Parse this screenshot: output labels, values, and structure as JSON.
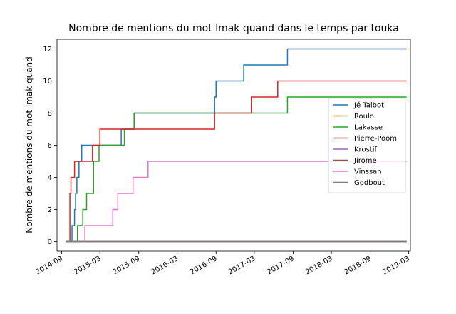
{
  "chart_data": {
    "type": "line",
    "step": "post",
    "title": "Nombre de mentions du mot lmak quand dans le temps par touka",
    "xlabel": "",
    "ylabel": "Nombre de mentions du mot lmak quand",
    "xlim": [
      "2014-08-10",
      "2019-03-10"
    ],
    "ylim": [
      -0.6,
      12.6
    ],
    "x_ticks": [
      "2014-09",
      "2015-03",
      "2015-09",
      "2016-03",
      "2016-09",
      "2017-03",
      "2017-09",
      "2018-03",
      "2018-09",
      "2019-03"
    ],
    "y_ticks": [
      0,
      2,
      4,
      6,
      8,
      10,
      12
    ],
    "grid": false,
    "legend_position": "center-right",
    "series": [
      {
        "name": "Jé Talbot",
        "color": "#1f77b4",
        "x": [
          "2014-09-20",
          "2014-10-20",
          "2014-11-01",
          "2014-11-06",
          "2014-11-12",
          "2014-11-22",
          "2014-12-05",
          "2015-01-10",
          "2015-06-10",
          "2015-08-10",
          "2016-08-25",
          "2016-09-01",
          "2016-10-01",
          "2017-01-10",
          "2017-08-05",
          "2019-02-20"
        ],
        "y": [
          0,
          1,
          2,
          3,
          4,
          5,
          6,
          6,
          7,
          8,
          9,
          10,
          10,
          11,
          12,
          12
        ]
      },
      {
        "name": "Roulo",
        "color": "#ff7f0e",
        "x": [
          "2014-09-20",
          "2019-02-20"
        ],
        "y": [
          0,
          0
        ]
      },
      {
        "name": "Lakasse",
        "color": "#2ca02c",
        "x": [
          "2014-09-20",
          "2014-11-15",
          "2014-12-10",
          "2014-12-28",
          "2015-01-30",
          "2015-02-25",
          "2015-06-25",
          "2015-08-10",
          "2017-08-05",
          "2019-02-20"
        ],
        "y": [
          0,
          1,
          2,
          3,
          5,
          6,
          7,
          8,
          9,
          9
        ]
      },
      {
        "name": "Pierre-Poom",
        "color": "#d62728",
        "x": [
          "2014-09-20",
          "2014-10-10",
          "2014-10-15",
          "2014-11-01",
          "2015-01-25",
          "2015-03-01",
          "2016-08-25",
          "2017-02-15",
          "2017-06-20",
          "2019-02-20"
        ],
        "y": [
          0,
          3,
          4,
          5,
          6,
          7,
          8,
          9,
          10,
          10
        ]
      },
      {
        "name": "Krostif",
        "color": "#9467bd",
        "x": [
          "2014-09-20",
          "2019-02-20"
        ],
        "y": [
          0,
          0
        ]
      },
      {
        "name": "Jirome",
        "color": "#8c564b",
        "x": [
          "2014-09-20",
          "2019-02-20"
        ],
        "y": [
          0,
          0
        ]
      },
      {
        "name": "Vinssan",
        "color": "#e377c2",
        "x": [
          "2014-12-15",
          "2014-12-20",
          "2015-05-01",
          "2015-05-25",
          "2015-08-05",
          "2015-10-15",
          "2019-02-20"
        ],
        "y": [
          0,
          1,
          2,
          3,
          4,
          5,
          5
        ]
      },
      {
        "name": "Godbout",
        "color": "#7f7f7f",
        "x": [
          "2014-09-20",
          "2019-02-20"
        ],
        "y": [
          0,
          0
        ]
      }
    ]
  }
}
